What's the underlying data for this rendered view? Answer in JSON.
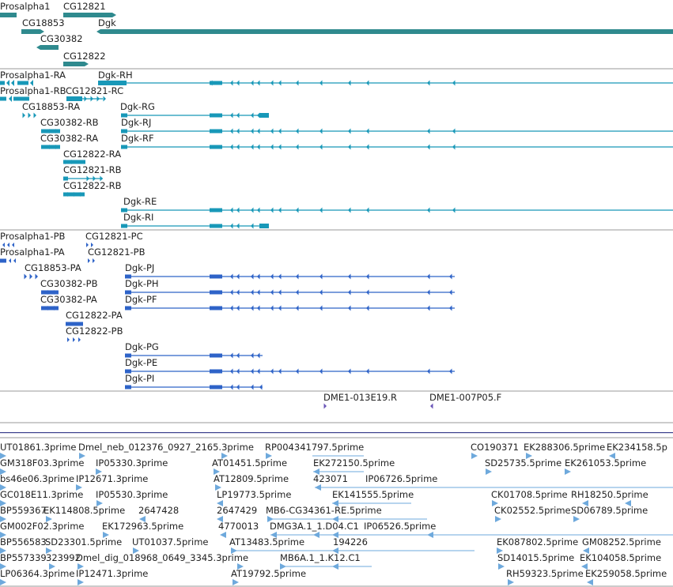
{
  "colors": {
    "gene": "#2f8a8e",
    "transcript_rna": "#1898b8",
    "transcript_protein": "#2e63c8",
    "est": "#6ea9dc",
    "bac": "#6a55b8",
    "separator": "#9a9a9a",
    "band": "#3a3f8c"
  },
  "genes": [
    {
      "label": "Prosalpha1",
      "strand": "-",
      "icon": "gene-arrow-icon"
    },
    {
      "label": "CG12821",
      "strand": "+",
      "icon": "gene-arrow-icon"
    },
    {
      "label": "CG18853",
      "strand": "+",
      "icon": "gene-arrow-icon"
    },
    {
      "label": "Dgk",
      "strand": "-",
      "icon": "gene-arrow-icon"
    },
    {
      "label": "CG30382",
      "strand": "-",
      "icon": "gene-arrow-icon"
    },
    {
      "label": "CG12822",
      "strand": "+",
      "icon": "gene-arrow-icon"
    }
  ],
  "transcripts": [
    "Prosalpha1-RA",
    "Dgk-RH",
    "Prosalpha1-RB",
    "CG12821-RC",
    "CG18853-RA",
    "Dgk-RG",
    "CG30382-RB",
    "Dgk-RJ",
    "CG30382-RA",
    "Dgk-RF",
    "CG12822-RA",
    "CG12821-RB",
    "CG12822-RB",
    "Dgk-RE",
    "Dgk-RI"
  ],
  "proteins": [
    "Prosalpha1-PB",
    "CG12821-PC",
    "Prosalpha1-PA",
    "CG12821-PB",
    "CG18853-PA",
    "Dgk-PJ",
    "CG30382-PB",
    "Dgk-PH",
    "CG30382-PA",
    "Dgk-PF",
    "CG12822-PA",
    "CG12822-PB",
    "Dgk-PG",
    "Dgk-PE",
    "Dgk-PI"
  ],
  "bacs": [
    "DME1-013E19.R",
    "DME1-007P05.F"
  ],
  "ests": [
    "UT01861.3prime",
    "Dmel_neb_012376_0927_2165.3prime",
    "RP004341797.5prime",
    "CO190371",
    "EK288306.5prime",
    "EK234158.5p",
    "GM318F03.3prime",
    "IP05330.3prime",
    "AT01451.5prime",
    "EK272150.5prime",
    "SD25735.5prime",
    "EK261053.5prime",
    "bs46e06.3prime",
    "IP12671.3prime",
    "AT12809.5prime",
    "423071",
    "IP06726.5prime",
    "GC018E11.3prime",
    "IP05530.3prime",
    "LP19773.5prime",
    "EK141555.5prime",
    "CK01708.5prime",
    "RH18250.5prime",
    "BP559367",
    "EK114808.5prime",
    "2647428",
    "2647429",
    "MB6-CG34361-RE.5prime",
    "CK02552.5prime",
    "SD06789.5prime",
    "GM002F02.3prime",
    "EK172963.5prime",
    "4770013",
    "DMG3A.1_1.D04.C1",
    "IP06526.5prime",
    "BP556583",
    "SD23301.5prime",
    "UT01037.5prime",
    "AT13483.5prime",
    "194226",
    "EK087802.5prime",
    "GM08252.5prime",
    "BP557339",
    "323992",
    "Dmel_dig_018968_0649_3345.3prime",
    "MB6A.1_1.K12.C1",
    "SD14015.5prime",
    "EK104058.5prime",
    "LP06364.3prime",
    "IP12471.3prime",
    "AT19792.5prime",
    "RH59323.5prime",
    "EK259058.5prime"
  ]
}
